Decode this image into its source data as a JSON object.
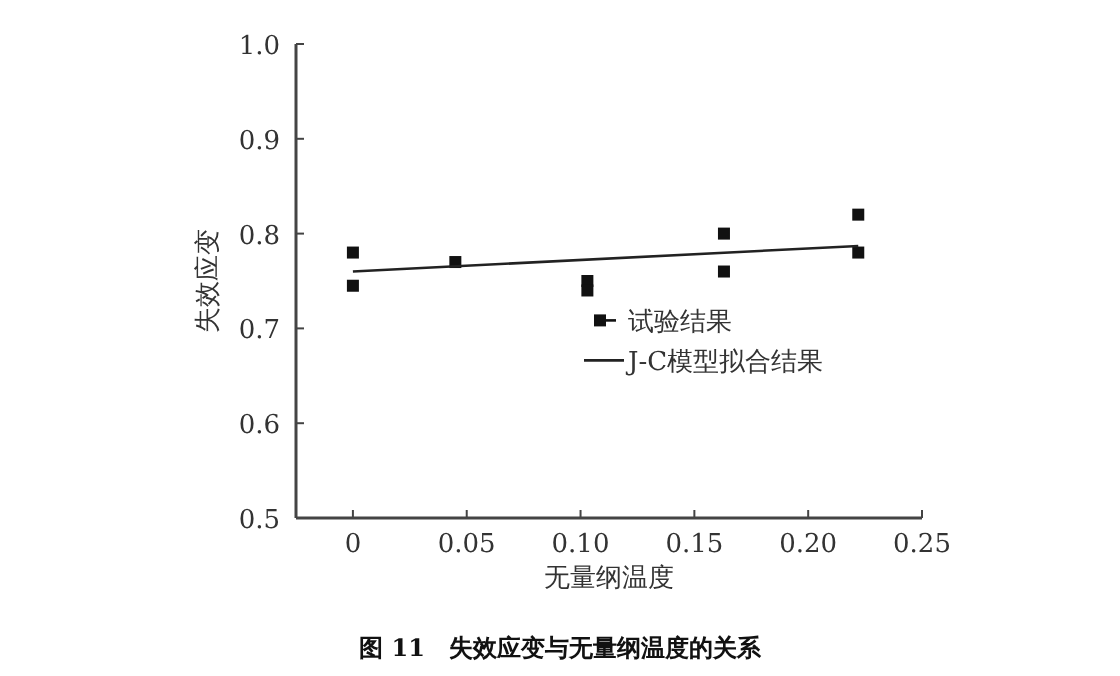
{
  "chart_data": {
    "type": "scatter",
    "xlabel": "无量纲温度",
    "ylabel": "失效应变",
    "xlim": [
      -0.025,
      0.25
    ],
    "xticks": [
      0,
      {
        "value": 0.05,
        "label": "0.05"
      },
      {
        "value": 0.1,
        "label": "0.10"
      },
      {
        "value": 0.15,
        "label": "0.15"
      },
      {
        "value": 0.2,
        "label": "0.20"
      },
      {
        "value": 0.25,
        "label": "0.25"
      }
    ],
    "ylim": [
      0.5,
      1.0
    ],
    "yticks": [
      {
        "value": 0.5,
        "label": "0.5"
      },
      {
        "value": 0.6,
        "label": "0.6"
      },
      {
        "value": 0.7,
        "label": "0.7"
      },
      {
        "value": 0.8,
        "label": "0.8"
      },
      {
        "value": 0.9,
        "label": "0.9"
      },
      {
        "value": 1.0,
        "label": "1.0"
      }
    ],
    "series": [
      {
        "name": "试验结果",
        "type": "scatter",
        "marker": "square",
        "color": "#111111",
        "x": [
          0,
          0,
          0.045,
          0.103,
          0.103,
          0.163,
          0.163,
          0.222,
          0.222
        ],
        "values": [
          0.78,
          0.745,
          0.77,
          0.75,
          0.74,
          0.8,
          0.76,
          0.82,
          0.78
        ]
      },
      {
        "name": "J-C模型拟合结果",
        "type": "line",
        "marker": "none",
        "color": "#222222",
        "x": [
          0,
          0.222
        ],
        "values": [
          0.76,
          0.787
        ]
      }
    ],
    "legend": "right",
    "grid": false,
    "annotations": [
      "图 11　失效应变与无量纲温度的关系"
    ]
  }
}
